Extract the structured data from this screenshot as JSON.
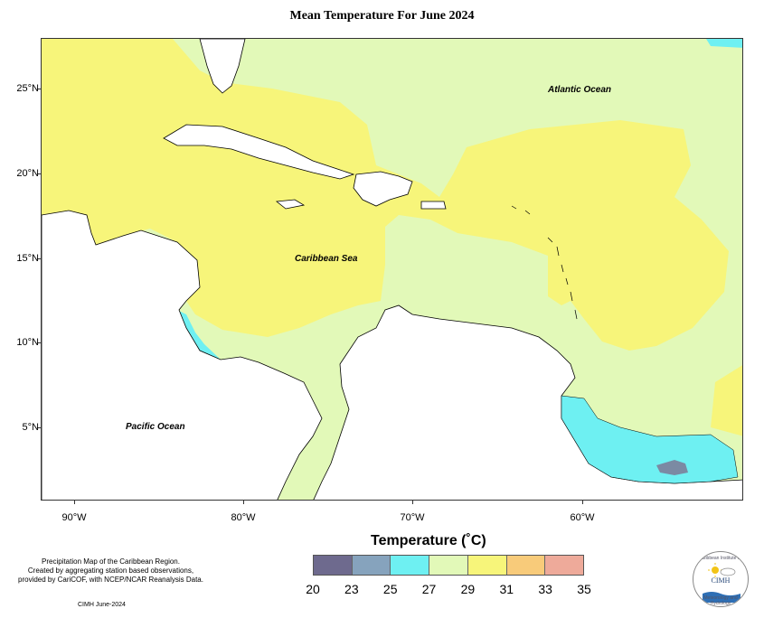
{
  "title": "Mean Temperature For June 2024",
  "map": {
    "lat_labels": [
      "25°N",
      "20°N",
      "15°N",
      "10°N",
      "5°N"
    ],
    "lon_labels": [
      "90°W",
      "80°W",
      "70°W",
      "60°W"
    ],
    "regions": {
      "atlantic": "Atlantic Ocean",
      "caribbean": "Caribbean Sea",
      "pacific": "Pacific Ocean"
    },
    "temperature_zones": [
      {
        "range": "29-31",
        "color": "#f7f57a",
        "area": "Gulf of Mexico, Caribbean Sea and central Atlantic"
      },
      {
        "range": "27-29",
        "color": "#e2f9b8",
        "area": "North Atlantic and ocean margins"
      },
      {
        "range": "25-27",
        "color": "#6ef0f2",
        "area": "Guianas interior, Pacific coast of Central America"
      },
      {
        "range": "23-25",
        "color": "#8aa0bd",
        "area": "Lake Maracaibo, Suriname interior"
      }
    ]
  },
  "legend": {
    "title": "Temperature (˚C)",
    "colors": [
      "#6e6a8e",
      "#86a3bd",
      "#6ef0f2",
      "#e2f9b8",
      "#f7f57a",
      "#f8cb7a",
      "#eeaa9a"
    ],
    "values": [
      "20",
      "23",
      "25",
      "27",
      "29",
      "31",
      "33",
      "35"
    ]
  },
  "footer": {
    "lines": [
      "Precipitation Map of the Caribbean Region.",
      "Created by aggregating station based observations,",
      "provided by CariCOF, with NCEP/NCAR Reanalysis Data."
    ],
    "credit": "CIMH June-2024"
  },
  "logo": {
    "text": "CIMH",
    "ring_top": "Caribbean Institute for",
    "ring_bottom": "Meteorology and Hydrology"
  }
}
